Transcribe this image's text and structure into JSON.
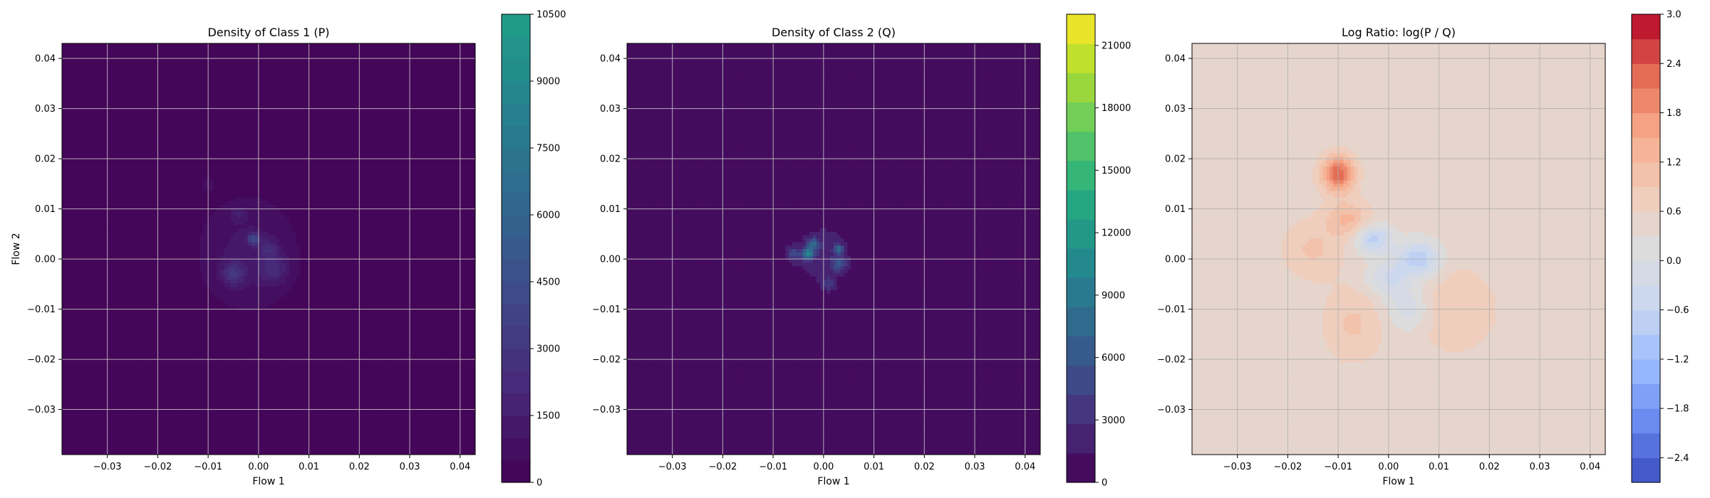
{
  "chart_data": [
    {
      "type": "heatmap",
      "title": "Density of Class 1 (P)",
      "xlabel": "Flow 1",
      "ylabel": "Flow 2",
      "xlim": [
        -0.039,
        0.043
      ],
      "ylim": [
        -0.039,
        0.043
      ],
      "xticks": [
        "−0.03",
        "−0.02",
        "−0.01",
        "0.00",
        "0.01",
        "0.02",
        "0.03",
        "0.04"
      ],
      "yticks": [
        "−0.03",
        "−0.02",
        "−0.01",
        "0.00",
        "0.01",
        "0.02",
        "0.03",
        "0.04"
      ],
      "grid": true,
      "colormap": "viridis",
      "colorbar": {
        "min": 0,
        "max": 10500,
        "ticks": [
          "0",
          "1500",
          "3000",
          "4500",
          "6000",
          "7500",
          "9000",
          "10500"
        ],
        "tick_values": [
          0,
          1500,
          3000,
          4500,
          6000,
          7500,
          9000,
          10500
        ],
        "levels": 21,
        "color_stops": [
          "#440154",
          "#482878",
          "#3e4989",
          "#31688e",
          "#26828e",
          "#1f9e89"
        ]
      },
      "background_color": "#440154",
      "blobs": [
        {
          "x": -0.002,
          "y": 0.001,
          "sx": 0.0075,
          "sy": 0.0085,
          "value": 1200
        },
        {
          "x": -0.001,
          "y": 0.004,
          "sx": 0.0008,
          "sy": 0.0008,
          "value": 3500
        },
        {
          "x": -0.005,
          "y": -0.003,
          "sx": 0.0015,
          "sy": 0.0015,
          "value": 2200
        },
        {
          "x": 0.003,
          "y": -0.002,
          "sx": 0.002,
          "sy": 0.002,
          "value": 1500
        },
        {
          "x": -0.01,
          "y": 0.015,
          "sx": 0.001,
          "sy": 0.0012,
          "value": 600
        },
        {
          "x": -0.004,
          "y": 0.009,
          "sx": 0.0012,
          "sy": 0.001,
          "value": 900
        },
        {
          "x": 0.002,
          "y": 0.002,
          "sx": 0.0012,
          "sy": 0.0012,
          "value": 1400
        }
      ]
    },
    {
      "type": "heatmap",
      "title": "Density of Class 2 (Q)",
      "xlabel": "Flow 1",
      "ylabel": "",
      "xlim": [
        -0.039,
        0.043
      ],
      "ylim": [
        -0.039,
        0.043
      ],
      "xticks": [
        "−0.03",
        "−0.02",
        "−0.01",
        "0.00",
        "0.01",
        "0.02",
        "0.03",
        "0.04"
      ],
      "yticks": [
        "−0.03",
        "−0.02",
        "−0.01",
        "0.00",
        "0.01",
        "0.02",
        "0.03",
        "0.04"
      ],
      "grid": true,
      "colormap": "viridis",
      "colorbar": {
        "min": 0,
        "max": 22500,
        "ticks": [
          "0",
          "3000",
          "6000",
          "9000",
          "12000",
          "15000",
          "18000",
          "21000"
        ],
        "tick_values": [
          0,
          3000,
          6000,
          9000,
          12000,
          15000,
          18000,
          21000
        ],
        "levels": 16,
        "color_stops": [
          "#440154",
          "#472d7b",
          "#3b528b",
          "#2c728e",
          "#21918c",
          "#28ae80",
          "#5ec962",
          "#addc30",
          "#fde725"
        ]
      },
      "background_color": "#46085c",
      "blobs": [
        {
          "x": 0.0,
          "y": 0.001,
          "sx": 0.0045,
          "sy": 0.0045,
          "value": 2500
        },
        {
          "x": -0.003,
          "y": 0.001,
          "sx": 0.0008,
          "sy": 0.0008,
          "value": 9000
        },
        {
          "x": 0.003,
          "y": 0.002,
          "sx": 0.0006,
          "sy": 0.0006,
          "value": 7000
        },
        {
          "x": -0.002,
          "y": 0.003,
          "sx": 0.0008,
          "sy": 0.0008,
          "value": 6000
        },
        {
          "x": 0.003,
          "y": -0.001,
          "sx": 0.001,
          "sy": 0.001,
          "value": 4500
        },
        {
          "x": -0.006,
          "y": 0.001,
          "sx": 0.001,
          "sy": 0.001,
          "value": 4000
        },
        {
          "x": 0.001,
          "y": -0.005,
          "sx": 0.001,
          "sy": 0.001,
          "value": 3000
        }
      ]
    },
    {
      "type": "heatmap",
      "title": "Log Ratio: log(P / Q)",
      "xlabel": "Flow 1",
      "ylabel": "",
      "xlim": [
        -0.039,
        0.043
      ],
      "ylim": [
        -0.039,
        0.043
      ],
      "xticks": [
        "−0.03",
        "−0.02",
        "−0.01",
        "0.00",
        "0.01",
        "0.02",
        "0.03",
        "0.04"
      ],
      "yticks": [
        "−0.03",
        "−0.02",
        "−0.01",
        "0.00",
        "0.01",
        "0.02",
        "0.03",
        "0.04"
      ],
      "grid": true,
      "colormap": "coolwarm",
      "colorbar": {
        "min": -2.7,
        "max": 3.0,
        "ticks": [
          "−2.4",
          "−1.8",
          "−1.2",
          "−0.6",
          "0.0",
          "0.6",
          "1.2",
          "1.8",
          "2.4",
          "3.0"
        ],
        "tick_values": [
          -2.4,
          -1.8,
          -1.2,
          -0.6,
          0.0,
          0.6,
          1.2,
          1.8,
          2.4,
          3.0
        ],
        "levels": 19,
        "color_stops": [
          "#3b4cc0",
          "#6788ee",
          "#9abbff",
          "#c9d7f0",
          "#dddcdc",
          "#f2cbb7",
          "#f7a889",
          "#e26952",
          "#b40426"
        ]
      },
      "background_value": 0.45,
      "blobs": [
        {
          "x": -0.01,
          "y": 0.017,
          "sx": 0.0022,
          "sy": 0.0025,
          "value": 1.9
        },
        {
          "x": -0.008,
          "y": 0.008,
          "sx": 0.003,
          "sy": 0.0025,
          "value": 0.8
        },
        {
          "x": -0.015,
          "y": 0.002,
          "sx": 0.004,
          "sy": 0.004,
          "value": 0.5
        },
        {
          "x": -0.007,
          "y": -0.013,
          "sx": 0.004,
          "sy": 0.005,
          "value": 0.5
        },
        {
          "x": 0.013,
          "y": -0.01,
          "sx": 0.006,
          "sy": 0.006,
          "value": 0.4
        },
        {
          "x": -0.003,
          "y": 0.004,
          "sx": 0.0025,
          "sy": 0.002,
          "value": -1.2
        },
        {
          "x": 0.006,
          "y": 0.0,
          "sx": 0.003,
          "sy": 0.0025,
          "value": -1.3
        },
        {
          "x": 0.0,
          "y": -0.004,
          "sx": 0.003,
          "sy": 0.0025,
          "value": -0.8
        },
        {
          "x": 0.004,
          "y": -0.01,
          "sx": 0.003,
          "sy": 0.003,
          "value": -0.7
        }
      ]
    }
  ]
}
